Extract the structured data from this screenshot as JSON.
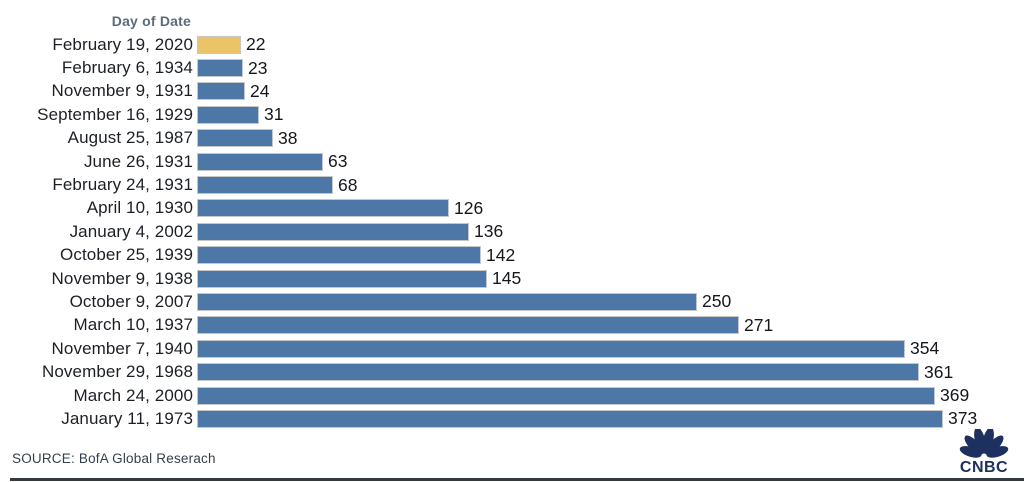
{
  "chart_data": {
    "type": "bar",
    "orientation": "horizontal",
    "header": "Day of Date",
    "categories": [
      "February 19, 2020",
      "February 6, 1934",
      "November 9, 1931",
      "September 16, 1929",
      "August 25, 1987",
      "June 26, 1931",
      "February 24, 1931",
      "April 10, 1930",
      "January 4, 2002",
      "October 25, 1939",
      "November 9, 1938",
      "October 9, 2007",
      "March 10, 1937",
      "November 7, 1940",
      "November 29, 1968",
      "March 24, 2000",
      "January 11, 1973"
    ],
    "values": [
      22,
      23,
      24,
      31,
      38,
      63,
      68,
      126,
      136,
      142,
      145,
      250,
      271,
      354,
      361,
      369,
      373
    ],
    "highlight_index": 0,
    "bar_color": "#4d77a6",
    "highlight_color": "#ebc469",
    "xlim": [
      0,
      380
    ],
    "grid": false,
    "legend": "none"
  },
  "footer": {
    "source": "SOURCE: BofA Global Reserach",
    "logo_text": "CNBC",
    "logo_color": "#1e3060"
  }
}
